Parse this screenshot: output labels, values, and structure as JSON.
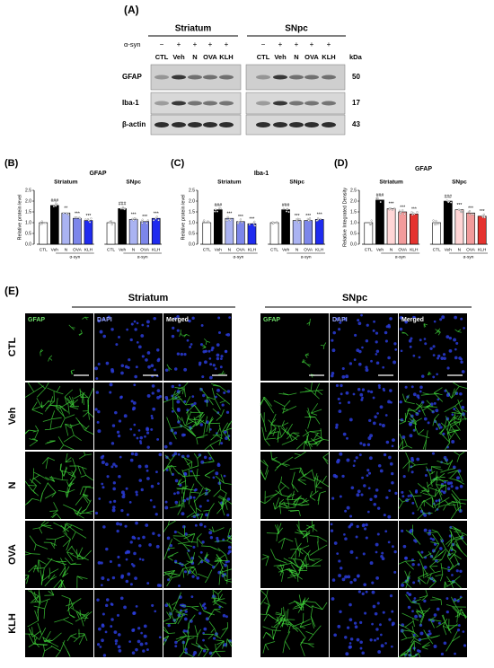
{
  "panel_labels": {
    "a": "(A)",
    "b": "(B)",
    "c": "(C)",
    "d": "(D)",
    "e": "(E)"
  },
  "blot": {
    "regions": [
      "Striatum",
      "SNpc"
    ],
    "treatment": "α-syn",
    "signs": [
      "−",
      "+",
      "+",
      "+",
      "+"
    ],
    "lanes": [
      "CTL",
      "Veh",
      "N",
      "OVA",
      "KLH"
    ],
    "proteins": [
      "GFAP",
      "Iba-1",
      "β-actin"
    ],
    "unit": "kDa",
    "sizes": [
      "50",
      "17",
      "43"
    ]
  },
  "chart_data": [
    {
      "type": "bar",
      "title": "GFAP",
      "ylabel": "Relative protein level",
      "xlabel": "α-syn",
      "categories": [
        "CTL",
        "Veh",
        "N",
        "OVA",
        "KLH"
      ],
      "colors": [
        "#ffffff",
        "#000000",
        "#aab3f2",
        "#7c86ea",
        "#1f2bef"
      ],
      "series": [
        {
          "name": "Striatum",
          "values": [
            1.0,
            1.8,
            1.45,
            1.2,
            1.1
          ],
          "annotations": [
            null,
            "###",
            "**",
            "***",
            "***"
          ]
        },
        {
          "name": "SNpc",
          "values": [
            1.0,
            1.65,
            1.15,
            1.05,
            1.2
          ],
          "annotations": [
            null,
            "###",
            "***",
            "***",
            "***"
          ]
        }
      ],
      "ylim": [
        0,
        2.5
      ],
      "yticks": [
        {
          "value": 0,
          "label": "0.0"
        },
        0.5,
        {
          "value": 1,
          "label": "1.0"
        },
        1.5,
        {
          "value": 2,
          "label": "2.0"
        },
        2.5
      ]
    },
    {
      "type": "bar",
      "title": "Iba-1",
      "ylabel": "Relative protein level",
      "xlabel": "α-syn",
      "categories": [
        "CTL",
        "Veh",
        "N",
        "OVA",
        "KLH"
      ],
      "colors": [
        "#ffffff",
        "#000000",
        "#aab3f2",
        "#7c86ea",
        "#1f2bef"
      ],
      "series": [
        {
          "name": "Striatum",
          "values": [
            1.0,
            1.6,
            1.2,
            1.05,
            0.95
          ],
          "annotations": [
            null,
            "###",
            "***",
            "***",
            "***"
          ]
        },
        {
          "name": "SNpc",
          "values": [
            1.0,
            1.6,
            1.1,
            1.1,
            1.15
          ],
          "annotations": [
            null,
            "###",
            "***",
            "***",
            "***"
          ]
        }
      ],
      "ylim": [
        0,
        2.5
      ],
      "yticks": [
        {
          "value": 0,
          "label": "0.0"
        },
        0.5,
        {
          "value": 1,
          "label": "1.0"
        },
        1.5,
        {
          "value": 2,
          "label": "2.0"
        },
        2.5
      ]
    },
    {
      "type": "bar",
      "title": "GFAP",
      "ylabel": "Relative Integrated Density",
      "xlabel": "α-syn",
      "categories": [
        "CTL",
        "Veh",
        "N",
        "OVA",
        "KLH"
      ],
      "colors": [
        "#ffffff",
        "#000000",
        "#ffd6d6",
        "#f29b9b",
        "#e5332f"
      ],
      "series": [
        {
          "name": "Striatum",
          "values": [
            1.0,
            2.05,
            1.65,
            1.5,
            1.4
          ],
          "annotations": [
            null,
            "###",
            "***",
            "***",
            "***"
          ]
        },
        {
          "name": "SNpc",
          "values": [
            1.0,
            2.0,
            1.6,
            1.45,
            1.3
          ],
          "annotations": [
            null,
            "###",
            "***",
            "***",
            "***"
          ]
        }
      ],
      "ylim": [
        0,
        2.5
      ],
      "yticks": [
        {
          "value": 0,
          "label": "0.0"
        },
        0.5,
        {
          "value": 1,
          "label": "1.0"
        },
        1.5,
        {
          "value": 2,
          "label": "2.0"
        },
        2.5
      ]
    }
  ],
  "imaging": {
    "regions": [
      "Striatum",
      "SNpc"
    ],
    "channels": [
      "GFAP",
      "DAPI",
      "Merged"
    ],
    "rows": [
      "CTL",
      "Veh",
      "N",
      "OVA",
      "KLH"
    ]
  }
}
